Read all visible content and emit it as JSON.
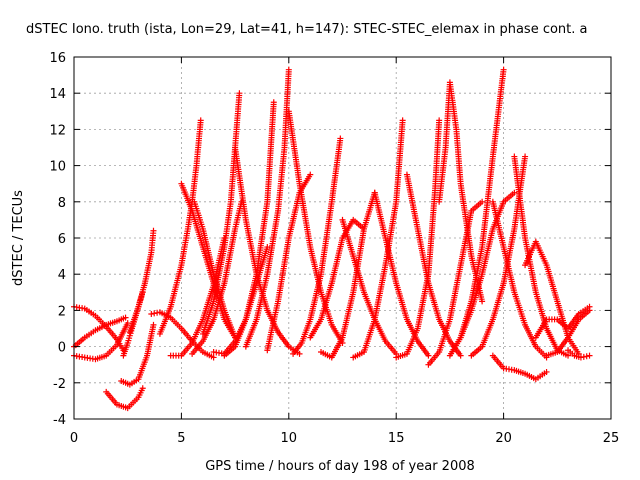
{
  "chart_data": {
    "type": "scatter",
    "title": "dSTEC Iono. truth (ista, Lon=29, Lat=41, h=147): STEC-STEC_elemax in phase cont. a",
    "xlabel": "GPS time / hours of day 198 of year 2008",
    "ylabel": "dSTEC  / TECUs",
    "xlim": [
      0,
      25
    ],
    "ylim": [
      -4,
      16
    ],
    "xticks": [
      0,
      5,
      10,
      15,
      20,
      25
    ],
    "yticks": [
      -4,
      -2,
      0,
      2,
      4,
      6,
      8,
      10,
      12,
      14,
      16
    ],
    "grid": true,
    "marker": "plus",
    "color": "#ff0000",
    "series": [
      {
        "x": [
          0,
          0.5,
          1.0,
          1.5,
          2.0,
          2.3
        ],
        "y": [
          2.2,
          2.1,
          1.7,
          1.1,
          0.4,
          -0.2
        ]
      },
      {
        "x": [
          0,
          0.5,
          1.0,
          1.5,
          2.0,
          2.4
        ],
        "y": [
          0.0,
          0.5,
          0.9,
          1.2,
          1.4,
          1.6
        ]
      },
      {
        "x": [
          0,
          0.5,
          1.0,
          1.5,
          2.0,
          2.5
        ],
        "y": [
          -0.5,
          -0.6,
          -0.7,
          -0.5,
          0.1,
          1.3
        ]
      },
      {
        "x": [
          1.5,
          2.0,
          2.5,
          3.0,
          3.2
        ],
        "y": [
          -2.5,
          -3.2,
          -3.4,
          -2.8,
          -2.3
        ]
      },
      {
        "x": [
          2.3,
          2.5,
          2.7,
          3.0,
          3.2
        ],
        "y": [
          -0.5,
          0.2,
          1.0,
          2.2,
          3.0
        ]
      },
      {
        "x": [
          2.2,
          2.6,
          3.0,
          3.4,
          3.7
        ],
        "y": [
          -1.9,
          -2.1,
          -1.8,
          -0.5,
          1.2
        ]
      },
      {
        "x": [
          2.6,
          3.0,
          3.3,
          3.6,
          3.7
        ],
        "y": [
          0.8,
          2.2,
          3.5,
          5.2,
          6.4
        ]
      },
      {
        "x": [
          3.6,
          4.0,
          4.5,
          5.0,
          5.5,
          6.0,
          6.5
        ],
        "y": [
          1.8,
          1.9,
          1.6,
          1.0,
          0.3,
          -0.3,
          -0.6
        ]
      },
      {
        "x": [
          4.0,
          4.5,
          5.0,
          5.3,
          5.5,
          5.7,
          5.9
        ],
        "y": [
          0.7,
          2.2,
          4.5,
          6.5,
          8.0,
          10.0,
          12.5
        ]
      },
      {
        "x": [
          4.5,
          5.0,
          5.5,
          6.0,
          6.5,
          7.0
        ],
        "y": [
          -0.5,
          -0.5,
          0.2,
          1.5,
          3.4,
          6.0
        ]
      },
      {
        "x": [
          5.5,
          6.0,
          6.5,
          7.0,
          7.5,
          7.8
        ],
        "y": [
          -0.4,
          0.3,
          1.5,
          3.5,
          6.5,
          8.0
        ]
      },
      {
        "x": [
          5.6,
          6.0,
          6.5,
          7.0,
          7.5
        ],
        "y": [
          8.0,
          6.5,
          4.0,
          2.0,
          0.5
        ]
      },
      {
        "x": [
          6.0,
          6.5,
          7.0,
          7.3,
          7.5,
          7.7
        ],
        "y": [
          0.7,
          2.5,
          5.5,
          8.0,
          11.0,
          14.0
        ]
      },
      {
        "x": [
          5.0,
          5.5,
          6.0,
          6.5,
          7.0,
          7.5
        ],
        "y": [
          9.0,
          7.5,
          5.5,
          3.5,
          1.5,
          0.5
        ]
      },
      {
        "x": [
          6.5,
          7.0,
          7.5,
          8.0,
          8.5,
          9.0
        ],
        "y": [
          -0.3,
          -0.4,
          0.3,
          1.5,
          3.5,
          5.5
        ]
      },
      {
        "x": [
          7.5,
          8.0,
          8.5,
          9.0,
          9.5,
          10.0,
          10.5
        ],
        "y": [
          11.0,
          7.0,
          4.0,
          2.0,
          0.8,
          0.0,
          -0.4
        ]
      },
      {
        "x": [
          7.0,
          7.5,
          8.0,
          8.5,
          9.0,
          9.3
        ],
        "y": [
          -0.5,
          0.0,
          1.5,
          4.0,
          8.0,
          13.5
        ]
      },
      {
        "x": [
          8.0,
          8.5,
          9.0,
          9.5,
          9.8,
          10.0
        ],
        "y": [
          0.0,
          1.5,
          4.0,
          7.5,
          11.0,
          15.3
        ]
      },
      {
        "x": [
          9.0,
          9.5,
          10.0,
          10.5,
          11.0
        ],
        "y": [
          -0.2,
          2.5,
          6.0,
          8.5,
          9.5
        ]
      },
      {
        "x": [
          10.0,
          10.5,
          11.0,
          11.5,
          12.0,
          12.5
        ],
        "y": [
          13.0,
          9.0,
          5.5,
          3.0,
          1.2,
          0.2
        ]
      },
      {
        "x": [
          10.2,
          10.6,
          11.0,
          11.5,
          12.0,
          12.4
        ],
        "y": [
          -0.4,
          0.2,
          1.5,
          4.0,
          8.0,
          11.5
        ]
      },
      {
        "x": [
          11.0,
          11.5,
          12.0,
          12.5,
          13.0,
          13.5
        ],
        "y": [
          0.5,
          1.5,
          3.5,
          6.0,
          7.0,
          6.5
        ]
      },
      {
        "x": [
          11.5,
          12.0,
          12.5,
          13.0,
          13.5,
          14.0
        ],
        "y": [
          -0.3,
          -0.6,
          0.5,
          3.0,
          6.5,
          8.5
        ]
      },
      {
        "x": [
          12.5,
          13.0,
          13.5,
          14.0,
          14.5,
          15.0
        ],
        "y": [
          7.0,
          5.0,
          3.0,
          1.5,
          0.3,
          -0.4
        ]
      },
      {
        "x": [
          13.0,
          13.5,
          14.0,
          14.5,
          15.0,
          15.3
        ],
        "y": [
          -0.6,
          -0.3,
          1.5,
          4.5,
          8.0,
          12.5
        ]
      },
      {
        "x": [
          14.0,
          14.5,
          15.0,
          15.5,
          16.0,
          16.5
        ],
        "y": [
          8.5,
          6.0,
          3.5,
          1.5,
          0.3,
          -0.5
        ]
      },
      {
        "x": [
          15.0,
          15.5,
          16.0,
          16.5,
          16.8,
          17.0
        ],
        "y": [
          -0.6,
          -0.4,
          1.0,
          4.0,
          8.5,
          12.5
        ]
      },
      {
        "x": [
          15.5,
          16.0,
          16.5,
          17.0,
          17.5,
          18.0
        ],
        "y": [
          9.5,
          6.5,
          3.5,
          1.5,
          0.3,
          -0.5
        ]
      },
      {
        "x": [
          16.5,
          17.0,
          17.5,
          18.0,
          18.5,
          19.0
        ],
        "y": [
          -1.0,
          -0.3,
          1.5,
          4.5,
          7.5,
          8.0
        ]
      },
      {
        "x": [
          17.0,
          17.3,
          17.5,
          17.8,
          18.0,
          18.5,
          19.0
        ],
        "y": [
          8.0,
          11.0,
          14.6,
          12.0,
          9.0,
          5.0,
          2.5
        ]
      },
      {
        "x": [
          17.5,
          18.0,
          18.5,
          19.0,
          19.5,
          20.0
        ],
        "y": [
          -0.5,
          0.5,
          2.5,
          5.5,
          10.5,
          15.3
        ]
      },
      {
        "x": [
          18.0,
          18.5,
          19.0,
          19.5,
          20.0,
          20.5
        ],
        "y": [
          0.5,
          2.0,
          4.0,
          6.5,
          8.0,
          8.5
        ]
      },
      {
        "x": [
          18.5,
          19.0,
          19.5,
          20.0,
          20.5,
          21.0
        ],
        "y": [
          -0.5,
          0.0,
          1.5,
          3.5,
          6.5,
          10.5
        ]
      },
      {
        "x": [
          19.5,
          20.0,
          20.5,
          21.0,
          21.5,
          22.0
        ],
        "y": [
          8.0,
          5.5,
          3.0,
          1.2,
          0.0,
          -0.6
        ]
      },
      {
        "x": [
          20.5,
          21.0,
          21.5,
          22.0,
          22.5,
          23.0
        ],
        "y": [
          10.5,
          6.0,
          3.0,
          1.0,
          -0.2,
          -0.5
        ]
      },
      {
        "x": [
          19.5,
          20.0,
          20.5,
          21.0,
          21.5,
          22.0
        ],
        "y": [
          -0.5,
          -1.2,
          -1.3,
          -1.5,
          -1.8,
          -1.4
        ]
      },
      {
        "x": [
          21.0,
          21.5,
          22.0,
          22.5,
          23.0,
          23.5
        ],
        "y": [
          4.5,
          5.8,
          4.5,
          2.5,
          0.5,
          -0.4
        ]
      },
      {
        "x": [
          21.5,
          22.0,
          22.5,
          23.0,
          23.5,
          24.0
        ],
        "y": [
          0.5,
          1.5,
          1.5,
          1.0,
          1.8,
          2.2
        ]
      },
      {
        "x": [
          22.0,
          22.5,
          23.0,
          23.5,
          24.0
        ],
        "y": [
          -0.5,
          -0.3,
          0.5,
          1.5,
          2.0
        ]
      },
      {
        "x": [
          23.0,
          23.3,
          23.6,
          24.0
        ],
        "y": [
          -0.2,
          -0.5,
          -0.6,
          -0.5
        ]
      }
    ]
  }
}
